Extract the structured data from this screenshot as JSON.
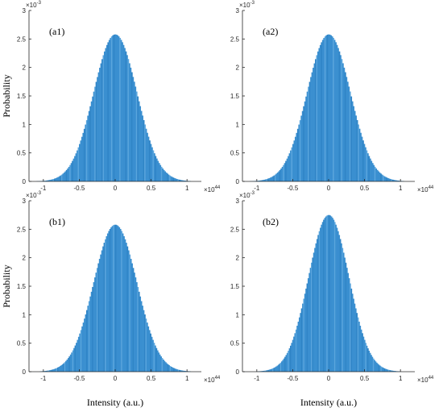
{
  "chart_data": [
    {
      "type": "area",
      "panel_label": "(a1)",
      "ylabel": "Probability",
      "xlabel": "",
      "y_exponent": "×10",
      "y_exponent_power": "-3",
      "x_exponent": "×10",
      "x_exponent_power": "44",
      "xlim": [
        -1.2,
        1.2
      ],
      "ylim": [
        0,
        3
      ],
      "xticks": [
        -1,
        -0.5,
        0,
        0.5,
        1
      ],
      "xtick_labels": [
        "-1",
        "-0.5",
        "0",
        "0.5",
        "1"
      ],
      "yticks": [
        0,
        0.5,
        1,
        1.5,
        2,
        2.5,
        3
      ],
      "ytick_labels": [
        "0",
        "0.5",
        "1",
        "1.5",
        "2",
        "2.5",
        "3"
      ],
      "distribution": {
        "shape": "gaussian",
        "mean": 0,
        "sigma": 0.3,
        "peak": 2.58,
        "x_range": [
          -1.1,
          1.05
        ]
      },
      "color": "#3a8fd0",
      "grid": false
    },
    {
      "type": "area",
      "panel_label": "(a2)",
      "ylabel": "",
      "xlabel": "",
      "y_exponent": "×10",
      "y_exponent_power": "-3",
      "x_exponent": "×10",
      "x_exponent_power": "44",
      "xlim": [
        -1.2,
        1.2
      ],
      "ylim": [
        0,
        3
      ],
      "xticks": [
        -1,
        -0.5,
        0,
        0.5,
        1
      ],
      "xtick_labels": [
        "-1",
        "-0.5",
        "0",
        "0.5",
        "1"
      ],
      "yticks": [
        0,
        0.5,
        1,
        1.5,
        2,
        2.5,
        3
      ],
      "ytick_labels": [
        "0",
        "0.5",
        "1",
        "1.5",
        "2",
        "2.5",
        "3"
      ],
      "distribution": {
        "shape": "gaussian",
        "mean": 0,
        "sigma": 0.3,
        "peak": 2.58,
        "x_range": [
          -1.1,
          1.05
        ]
      },
      "color": "#3a8fd0",
      "grid": false
    },
    {
      "type": "area",
      "panel_label": "(b1)",
      "ylabel": "Probability",
      "xlabel": "Intensity (a.u.)",
      "y_exponent": "×10",
      "y_exponent_power": "-3",
      "x_exponent": "×10",
      "x_exponent_power": "44",
      "xlim": [
        -1.2,
        1.2
      ],
      "ylim": [
        0,
        3
      ],
      "xticks": [
        -1,
        -0.5,
        0,
        0.5,
        1
      ],
      "xtick_labels": [
        "-1",
        "-0.5",
        "0",
        "0.5",
        "1"
      ],
      "yticks": [
        0,
        0.5,
        1,
        1.5,
        2,
        2.5,
        3
      ],
      "ytick_labels": [
        "0",
        "0.5",
        "1",
        "1.5",
        "2",
        "2.5",
        "3"
      ],
      "distribution": {
        "shape": "gaussian",
        "mean": 0,
        "sigma": 0.3,
        "peak": 2.58,
        "x_range": [
          -1.05,
          1.05
        ]
      },
      "color": "#3a8fd0",
      "grid": false
    },
    {
      "type": "area",
      "panel_label": "(b2)",
      "ylabel": "",
      "xlabel": "Intensity (a.u.)",
      "y_exponent": "×10",
      "y_exponent_power": "-3",
      "x_exponent": "×10",
      "x_exponent_power": "44",
      "xlim": [
        -1.2,
        1.2
      ],
      "ylim": [
        0,
        3
      ],
      "xticks": [
        -1,
        -0.5,
        0,
        0.5,
        1
      ],
      "xtick_labels": [
        "-1",
        "-0.5",
        "0",
        "0.5",
        "1"
      ],
      "yticks": [
        0,
        0.5,
        1,
        1.5,
        2,
        2.5,
        3
      ],
      "ytick_labels": [
        "0",
        "0.5",
        "1",
        "1.5",
        "2",
        "2.5",
        "3"
      ],
      "distribution": {
        "shape": "gaussian",
        "mean": 0,
        "sigma": 0.28,
        "peak": 2.75,
        "x_range": [
          -1.0,
          1.0
        ]
      },
      "color": "#3a8fd0",
      "grid": false
    }
  ]
}
